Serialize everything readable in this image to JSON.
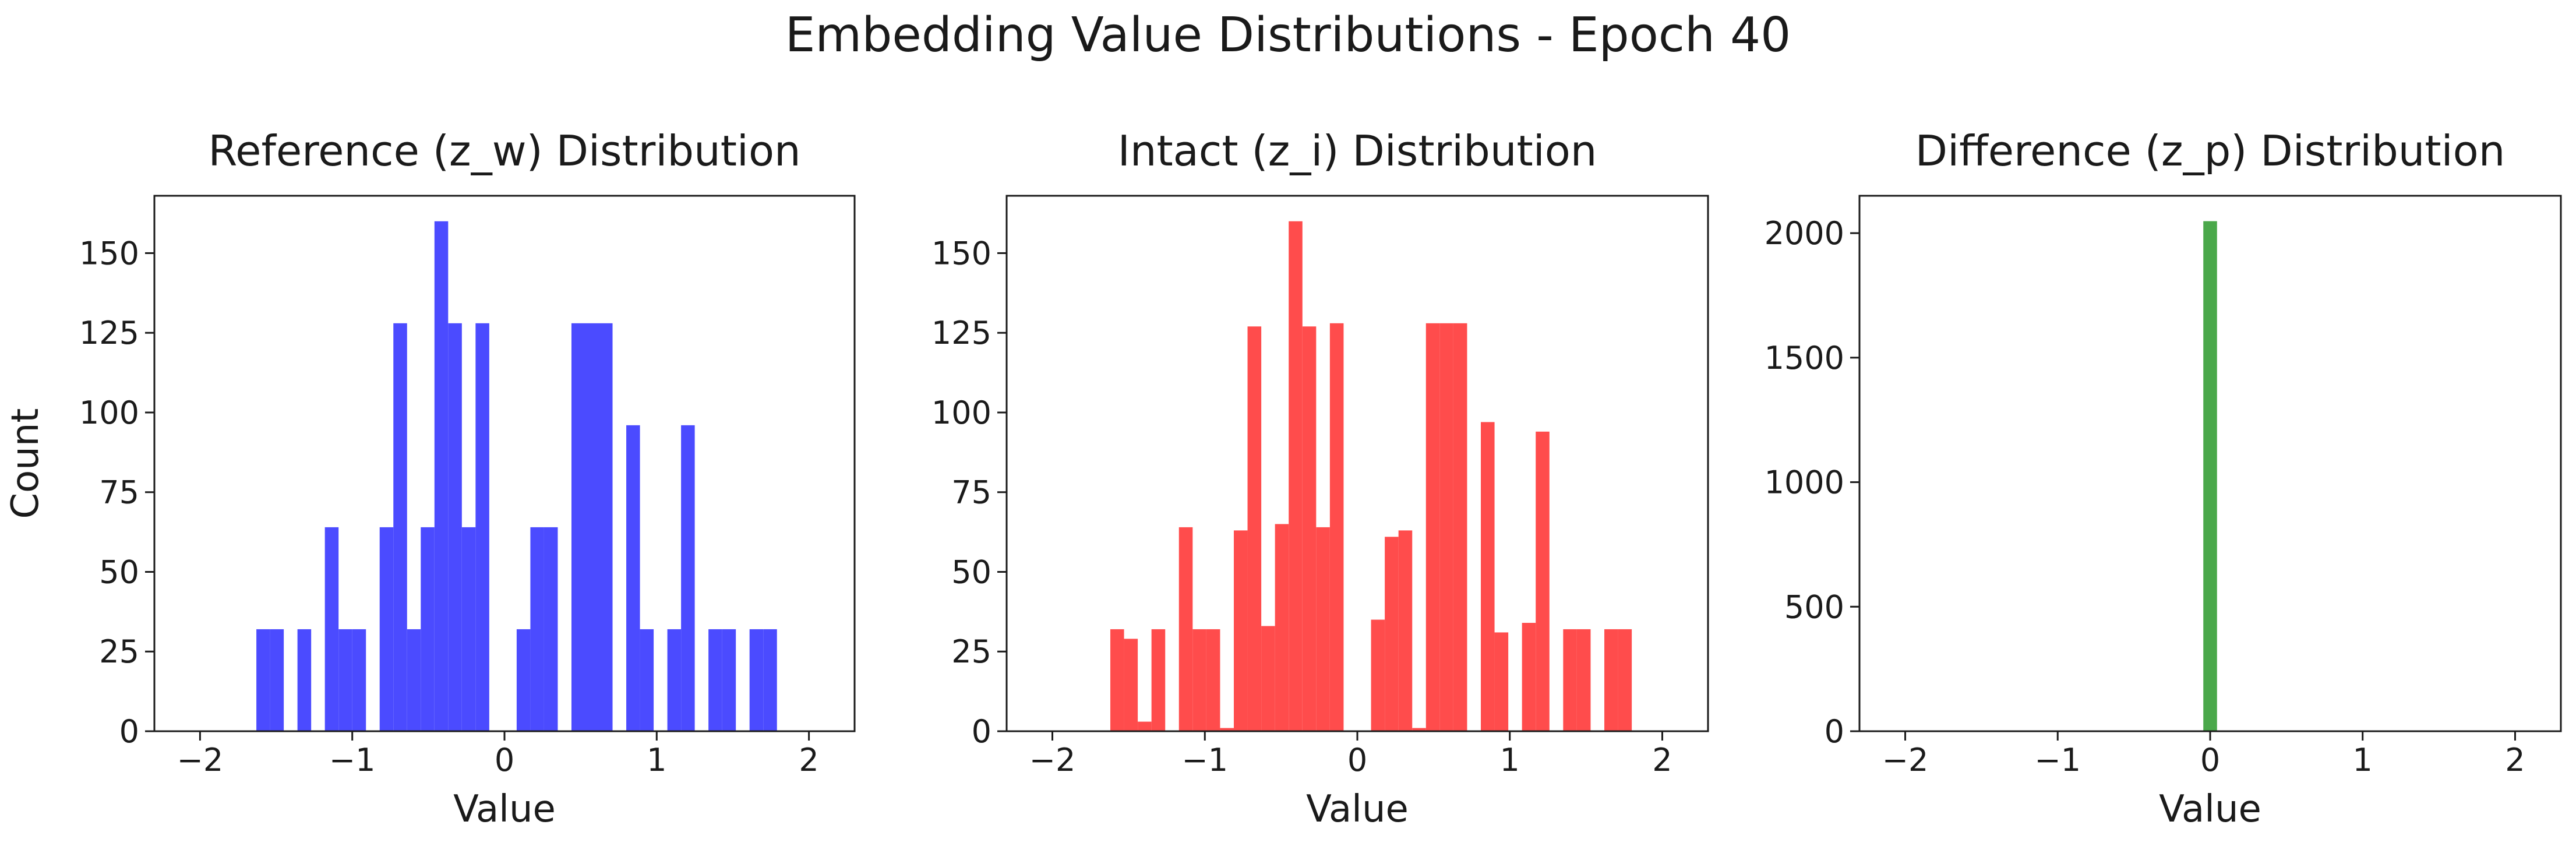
{
  "figure": {
    "title": "Embedding Value Distributions - Epoch 40"
  },
  "chart_data": [
    {
      "type": "bar",
      "title": "Reference (z_w) Distribution",
      "xlabel": "Value",
      "ylabel": "Count",
      "xlim": [
        -2.3,
        2.3
      ],
      "ylim": [
        0,
        168
      ],
      "xticks": [
        -2,
        -1,
        0,
        1,
        2
      ],
      "xtick_labels": [
        "−2",
        "−1",
        "0",
        "1",
        "2"
      ],
      "yticks": [
        0,
        25,
        50,
        75,
        100,
        125,
        150
      ],
      "ytick_labels": [
        "0",
        "25",
        "50",
        "75",
        "100",
        "125",
        "150"
      ],
      "color": "#4b4bff",
      "bins": [
        {
          "x0": -1.63,
          "x1": -1.54,
          "count": 32
        },
        {
          "x0": -1.54,
          "x1": -1.45,
          "count": 32
        },
        {
          "x0": -1.36,
          "x1": -1.27,
          "count": 32
        },
        {
          "x0": -1.18,
          "x1": -1.09,
          "count": 64
        },
        {
          "x0": -1.09,
          "x1": -1.0,
          "count": 32
        },
        {
          "x0": -1.0,
          "x1": -0.91,
          "count": 32
        },
        {
          "x0": -0.82,
          "x1": -0.73,
          "count": 64
        },
        {
          "x0": -0.73,
          "x1": -0.64,
          "count": 128
        },
        {
          "x0": -0.64,
          "x1": -0.55,
          "count": 32
        },
        {
          "x0": -0.55,
          "x1": -0.46,
          "count": 64
        },
        {
          "x0": -0.46,
          "x1": -0.37,
          "count": 160
        },
        {
          "x0": -0.37,
          "x1": -0.28,
          "count": 128
        },
        {
          "x0": -0.28,
          "x1": -0.19,
          "count": 64
        },
        {
          "x0": -0.19,
          "x1": -0.1,
          "count": 128
        },
        {
          "x0": 0.08,
          "x1": 0.17,
          "count": 32
        },
        {
          "x0": 0.17,
          "x1": 0.26,
          "count": 64
        },
        {
          "x0": 0.26,
          "x1": 0.35,
          "count": 64
        },
        {
          "x0": 0.44,
          "x1": 0.53,
          "count": 128
        },
        {
          "x0": 0.53,
          "x1": 0.62,
          "count": 128
        },
        {
          "x0": 0.62,
          "x1": 0.71,
          "count": 128
        },
        {
          "x0": 0.8,
          "x1": 0.89,
          "count": 96
        },
        {
          "x0": 0.89,
          "x1": 0.98,
          "count": 32
        },
        {
          "x0": 1.07,
          "x1": 1.16,
          "count": 32
        },
        {
          "x0": 1.16,
          "x1": 1.25,
          "count": 96
        },
        {
          "x0": 1.34,
          "x1": 1.43,
          "count": 32
        },
        {
          "x0": 1.43,
          "x1": 1.52,
          "count": 32
        },
        {
          "x0": 1.61,
          "x1": 1.7,
          "count": 32
        },
        {
          "x0": 1.7,
          "x1": 1.79,
          "count": 32
        }
      ]
    },
    {
      "type": "bar",
      "title": "Intact (z_i) Distribution",
      "xlabel": "Value",
      "ylabel": "",
      "xlim": [
        -2.3,
        2.3
      ],
      "ylim": [
        0,
        168
      ],
      "xticks": [
        -2,
        -1,
        0,
        1,
        2
      ],
      "xtick_labels": [
        "−2",
        "−1",
        "0",
        "1",
        "2"
      ],
      "yticks": [
        0,
        25,
        50,
        75,
        100,
        125,
        150
      ],
      "ytick_labels": [
        "0",
        "25",
        "50",
        "75",
        "100",
        "125",
        "150"
      ],
      "color": "#ff4c4c",
      "bins": [
        {
          "x0": -1.62,
          "x1": -1.53,
          "count": 32
        },
        {
          "x0": -1.53,
          "x1": -1.44,
          "count": 29
        },
        {
          "x0": -1.44,
          "x1": -1.35,
          "count": 3
        },
        {
          "x0": -1.35,
          "x1": -1.26,
          "count": 32
        },
        {
          "x0": -1.17,
          "x1": -1.08,
          "count": 64
        },
        {
          "x0": -1.08,
          "x1": -0.99,
          "count": 32
        },
        {
          "x0": -0.99,
          "x1": -0.9,
          "count": 32
        },
        {
          "x0": -0.9,
          "x1": -0.81,
          "count": 1
        },
        {
          "x0": -0.81,
          "x1": -0.72,
          "count": 63
        },
        {
          "x0": -0.72,
          "x1": -0.63,
          "count": 127
        },
        {
          "x0": -0.63,
          "x1": -0.54,
          "count": 33
        },
        {
          "x0": -0.54,
          "x1": -0.45,
          "count": 65
        },
        {
          "x0": -0.45,
          "x1": -0.36,
          "count": 160
        },
        {
          "x0": -0.36,
          "x1": -0.27,
          "count": 127
        },
        {
          "x0": -0.27,
          "x1": -0.18,
          "count": 64
        },
        {
          "x0": -0.18,
          "x1": -0.09,
          "count": 128
        },
        {
          "x0": 0.09,
          "x1": 0.18,
          "count": 35
        },
        {
          "x0": 0.18,
          "x1": 0.27,
          "count": 61
        },
        {
          "x0": 0.27,
          "x1": 0.36,
          "count": 63
        },
        {
          "x0": 0.36,
          "x1": 0.45,
          "count": 1
        },
        {
          "x0": 0.45,
          "x1": 0.54,
          "count": 128
        },
        {
          "x0": 0.54,
          "x1": 0.63,
          "count": 128
        },
        {
          "x0": 0.63,
          "x1": 0.72,
          "count": 128
        },
        {
          "x0": 0.81,
          "x1": 0.9,
          "count": 97
        },
        {
          "x0": 0.9,
          "x1": 0.99,
          "count": 31
        },
        {
          "x0": 1.08,
          "x1": 1.17,
          "count": 34
        },
        {
          "x0": 1.17,
          "x1": 1.26,
          "count": 94
        },
        {
          "x0": 1.35,
          "x1": 1.44,
          "count": 32
        },
        {
          "x0": 1.44,
          "x1": 1.53,
          "count": 32
        },
        {
          "x0": 1.62,
          "x1": 1.71,
          "count": 32
        },
        {
          "x0": 1.71,
          "x1": 1.8,
          "count": 32
        }
      ]
    },
    {
      "type": "bar",
      "title": "Difference (z_p) Distribution",
      "xlabel": "Value",
      "ylabel": "",
      "xlim": [
        -2.3,
        2.3
      ],
      "ylim": [
        0,
        2150
      ],
      "xticks": [
        -2,
        -1,
        0,
        1,
        2
      ],
      "xtick_labels": [
        "−2",
        "−1",
        "0",
        "1",
        "2"
      ],
      "yticks": [
        0,
        500,
        1000,
        1500,
        2000
      ],
      "ytick_labels": [
        "0",
        "500",
        "1000",
        "1500",
        "2000"
      ],
      "color": "#4aa84a",
      "bins": [
        {
          "x0": -0.045,
          "x1": 0.045,
          "count": 2048
        }
      ]
    }
  ]
}
